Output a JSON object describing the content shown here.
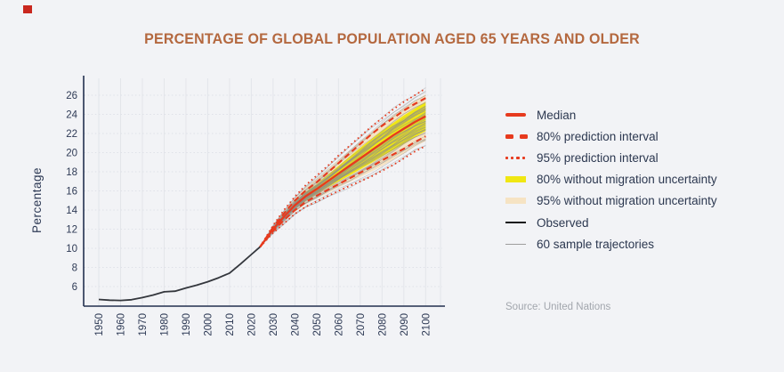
{
  "title": {
    "text": "PERCENTAGE OF GLOBAL POPULATION AGED 65 YEARS AND OLDER",
    "color": "#b4683f"
  },
  "source": {
    "text": "Source: United Nations"
  },
  "legend": {
    "items": [
      {
        "label": "Median",
        "swatch": "solid-thick",
        "color": "#e73a1e"
      },
      {
        "label": "80% prediction interval",
        "swatch": "dashed",
        "color": "#e73a1e"
      },
      {
        "label": "95% prediction interval",
        "swatch": "dotted",
        "color": "#e73a1e"
      },
      {
        "label": "80% without migration uncertainty",
        "swatch": "band",
        "color": "#f0e713"
      },
      {
        "label": "95% without migration uncertainty",
        "swatch": "band",
        "color": "#f6e3c3"
      },
      {
        "label": "Observed",
        "swatch": "solid-thin",
        "color": "#15161a"
      },
      {
        "label": "60 sample trajectories",
        "swatch": "hairline",
        "color": "#9d9d9d"
      }
    ]
  },
  "chart_data": {
    "type": "line",
    "title": "PERCENTAGE OF GLOBAL POPULATION AGED 65 YEARS AND OLDER",
    "xlabel": "",
    "ylabel": "Percentage",
    "xlim": [
      1950,
      2100
    ],
    "ylim": [
      4,
      28
    ],
    "grid": true,
    "legend_position": "right",
    "x_ticks": [
      1950,
      1960,
      1970,
      1980,
      1990,
      2000,
      2010,
      2020,
      2030,
      2040,
      2050,
      2060,
      2070,
      2080,
      2090,
      2100
    ],
    "y_ticks": [
      6,
      8,
      10,
      12,
      14,
      16,
      18,
      20,
      22,
      24,
      26
    ],
    "observed": {
      "years": [
        1950,
        1955,
        1960,
        1965,
        1970,
        1975,
        1980,
        1985,
        1990,
        1995,
        2000,
        2005,
        2010,
        2015,
        2020,
        2024
      ],
      "values": [
        4.65,
        4.58,
        4.55,
        4.62,
        4.85,
        5.12,
        5.45,
        5.52,
        5.85,
        6.15,
        6.5,
        6.92,
        7.4,
        8.35,
        9.35,
        10.15
      ]
    },
    "projection": {
      "years": [
        2024,
        2030,
        2035,
        2040,
        2045,
        2050,
        2055,
        2060,
        2065,
        2070,
        2075,
        2080,
        2085,
        2090,
        2095,
        2100
      ],
      "median": [
        10.15,
        12.0,
        13.3,
        14.5,
        15.45,
        16.2,
        17.0,
        17.8,
        18.6,
        19.4,
        20.2,
        21.0,
        21.8,
        22.5,
        23.2,
        23.8
      ],
      "pi80": {
        "lo": [
          10.15,
          11.8,
          12.95,
          14.0,
          14.85,
          15.5,
          16.1,
          16.7,
          17.3,
          17.9,
          18.5,
          19.2,
          19.8,
          20.4,
          21.1,
          21.7
        ],
        "hi": [
          10.15,
          12.2,
          13.65,
          15.0,
          16.05,
          16.9,
          17.9,
          18.9,
          19.9,
          20.9,
          21.9,
          22.8,
          23.6,
          24.4,
          25.1,
          25.7
        ]
      },
      "pi95": {
        "lo": [
          10.15,
          11.6,
          12.6,
          13.6,
          14.35,
          14.9,
          15.45,
          16.0,
          16.5,
          17.0,
          17.5,
          18.1,
          18.7,
          19.4,
          20.1,
          20.7
        ],
        "hi": [
          10.15,
          12.4,
          14.0,
          15.4,
          16.6,
          17.6,
          18.6,
          19.7,
          20.7,
          21.7,
          22.7,
          23.6,
          24.5,
          25.3,
          26.0,
          26.7
        ]
      },
      "nomig80": {
        "lo": [
          10.15,
          11.9,
          13.05,
          14.15,
          15.0,
          15.7,
          16.35,
          17.0,
          17.6,
          18.25,
          18.9,
          19.6,
          20.25,
          20.9,
          21.6,
          22.25
        ],
        "hi": [
          10.15,
          12.1,
          13.55,
          14.85,
          15.9,
          16.7,
          17.65,
          18.6,
          19.55,
          20.5,
          21.4,
          22.3,
          23.1,
          23.9,
          24.6,
          25.3
        ]
      },
      "nomig95": {
        "lo": [
          10.15,
          11.7,
          12.8,
          13.8,
          14.6,
          15.2,
          15.75,
          16.35,
          16.9,
          17.45,
          18.0,
          18.6,
          19.25,
          19.9,
          20.6,
          21.2
        ],
        "hi": [
          10.15,
          12.3,
          13.85,
          15.2,
          16.35,
          17.25,
          18.2,
          19.25,
          20.2,
          21.2,
          22.1,
          23.0,
          23.9,
          24.7,
          25.4,
          26.1
        ]
      },
      "n_trajectories": 60
    },
    "colors": {
      "median": "#e73a1e",
      "interval": "#e73a1e",
      "band80": "#f0e713",
      "band95": "#f6e3c3",
      "observed": "#34373d",
      "trajectory": "#8d8d8d",
      "grid_v": "#e3e5ea",
      "grid_h": "#dfe1e8",
      "axis": "#22304f",
      "tick_text": "#2e3a55"
    }
  }
}
